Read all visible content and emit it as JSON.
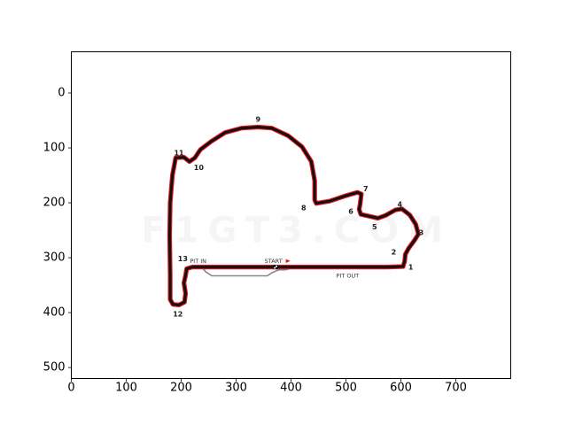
{
  "chart_data": {
    "type": "image-plot",
    "title": "",
    "xlabel": "",
    "ylabel": "",
    "xlim": [
      0,
      800
    ],
    "ylim": [
      520,
      -75
    ],
    "x_ticks": [
      0,
      100,
      200,
      300,
      400,
      500,
      600,
      700
    ],
    "y_ticks": [
      0,
      100,
      200,
      300,
      400,
      500
    ],
    "watermark": "F1GT3.COM",
    "colors": {
      "track_outline": "#e8141c",
      "track_surface": "#111111",
      "pit_lane": "#888888",
      "start_flag": "#e8141c"
    },
    "track_path": [
      [
        190,
        118
      ],
      [
        205,
        117
      ],
      [
        215,
        125
      ],
      [
        225,
        118
      ],
      [
        235,
        103
      ],
      [
        255,
        88
      ],
      [
        280,
        72
      ],
      [
        310,
        64
      ],
      [
        340,
        62
      ],
      [
        365,
        64
      ],
      [
        395,
        78
      ],
      [
        420,
        98
      ],
      [
        437,
        125
      ],
      [
        443,
        160
      ],
      [
        443,
        195
      ],
      [
        446,
        201
      ],
      [
        470,
        197
      ],
      [
        500,
        187
      ],
      [
        521,
        181
      ],
      [
        528,
        184
      ],
      [
        526,
        201
      ],
      [
        524,
        212
      ],
      [
        527,
        221
      ],
      [
        545,
        225
      ],
      [
        558,
        228
      ],
      [
        572,
        223
      ],
      [
        590,
        213
      ],
      [
        602,
        211
      ],
      [
        616,
        222
      ],
      [
        627,
        239
      ],
      [
        632,
        257
      ],
      [
        625,
        268
      ],
      [
        614,
        283
      ],
      [
        608,
        294
      ],
      [
        607,
        306
      ],
      [
        604,
        316
      ],
      [
        575,
        317
      ],
      [
        500,
        317
      ],
      [
        400,
        317
      ],
      [
        300,
        317
      ],
      [
        220,
        317
      ],
      [
        210,
        320
      ],
      [
        208,
        332
      ],
      [
        205,
        346
      ],
      [
        208,
        365
      ],
      [
        206,
        381
      ],
      [
        196,
        386
      ],
      [
        185,
        385
      ],
      [
        180,
        376
      ],
      [
        180,
        330
      ],
      [
        179,
        260
      ],
      [
        180,
        200
      ],
      [
        184,
        150
      ]
    ],
    "pit_lane_path": [
      [
        210,
        318
      ],
      [
        238,
        318
      ],
      [
        245,
        326
      ],
      [
        256,
        333
      ],
      [
        330,
        333
      ],
      [
        357,
        333
      ],
      [
        366,
        327
      ],
      [
        378,
        322
      ],
      [
        390,
        322
      ],
      [
        403,
        318
      ]
    ],
    "turns": [
      {
        "label": "1",
        "x": 618,
        "y": 318
      },
      {
        "label": "2",
        "x": 587,
        "y": 290
      },
      {
        "label": "3",
        "x": 637,
        "y": 255
      },
      {
        "label": "4",
        "x": 598,
        "y": 203
      },
      {
        "label": "5",
        "x": 552,
        "y": 244
      },
      {
        "label": "6",
        "x": 509,
        "y": 216
      },
      {
        "label": "7",
        "x": 536,
        "y": 175
      },
      {
        "label": "8",
        "x": 423,
        "y": 210
      },
      {
        "label": "9",
        "x": 340,
        "y": 48
      },
      {
        "label": "10",
        "x": 232,
        "y": 136
      },
      {
        "label": "11",
        "x": 196,
        "y": 110
      },
      {
        "label": "12",
        "x": 194,
        "y": 403
      },
      {
        "label": "13",
        "x": 203,
        "y": 302
      }
    ],
    "pit_in": {
      "label": "PIT IN",
      "x": 231,
      "y": 306
    },
    "pit_out": {
      "label": "PIT OUT",
      "x": 503,
      "y": 333
    },
    "start": {
      "label": "START",
      "x": 368,
      "y": 306
    },
    "start_marker": {
      "x": 372,
      "y": 317
    }
  }
}
